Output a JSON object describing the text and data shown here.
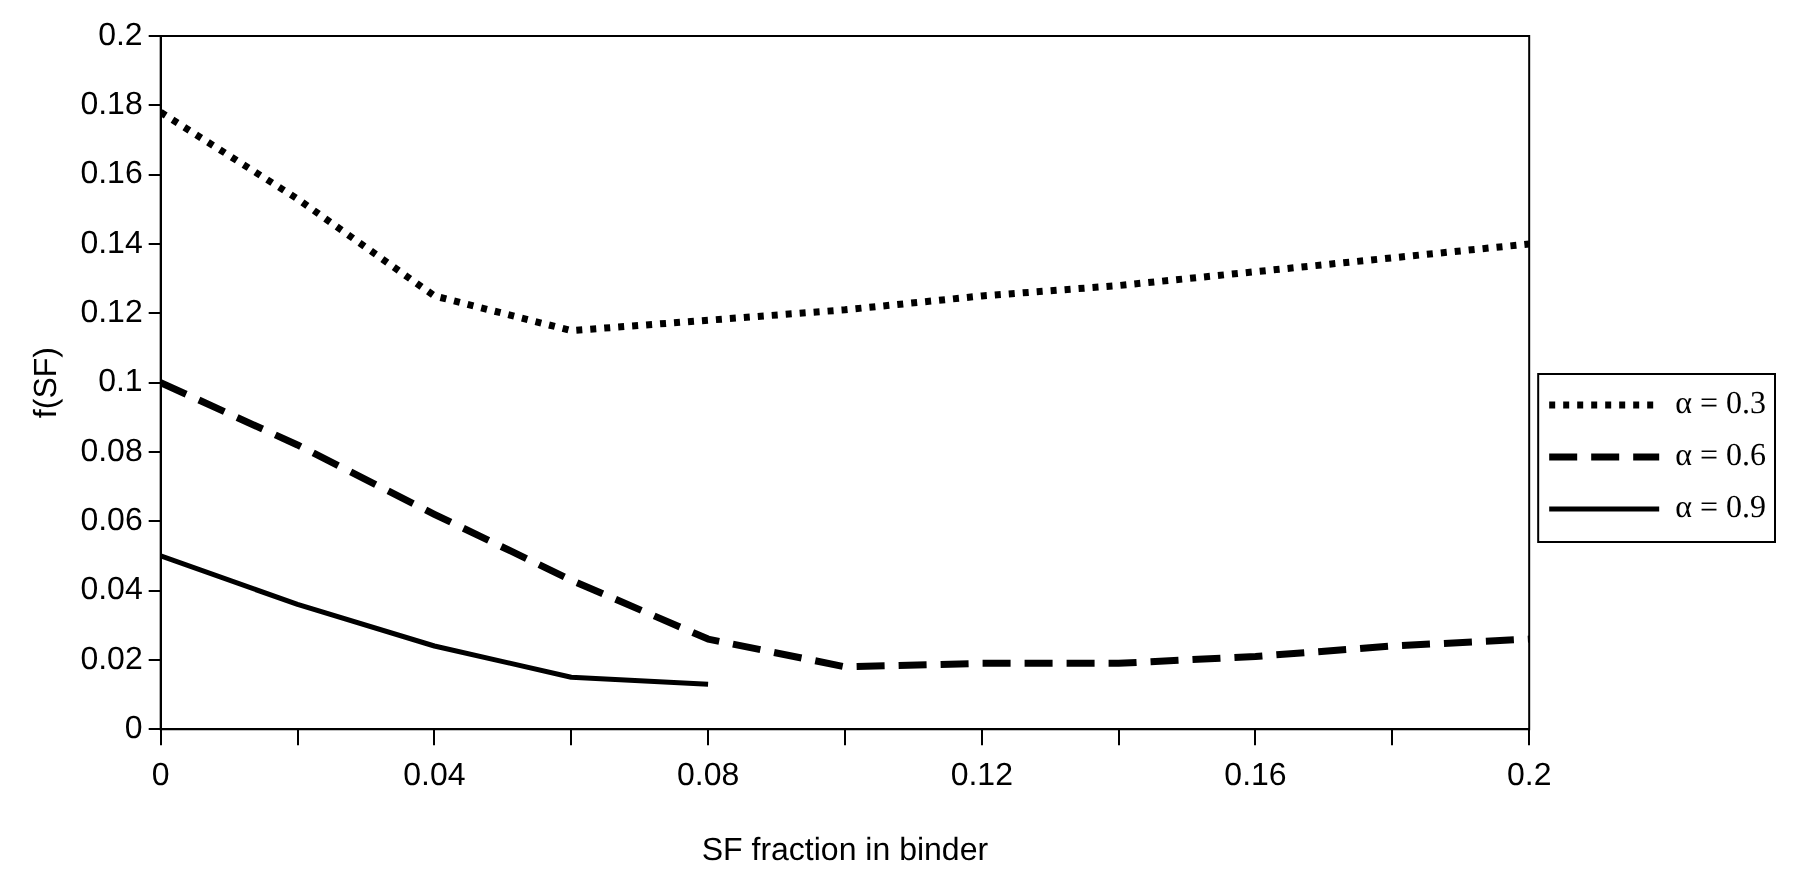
{
  "chart_data": {
    "type": "line",
    "xlabel": "SF fraction in binder",
    "ylabel": "f(SF)",
    "x": [
      0,
      0.02,
      0.04,
      0.06,
      0.08,
      0.1,
      0.12,
      0.14,
      0.16,
      0.18,
      0.2
    ],
    "xlim": [
      0,
      0.2
    ],
    "xticks": [
      0,
      {
        "value": 0.02,
        "label": null
      },
      0.04,
      {
        "value": 0.06,
        "label": null
      },
      0.08,
      {
        "value": 0.1,
        "label": null
      },
      0.12,
      {
        "value": 0.14,
        "label": null
      },
      0.16,
      {
        "value": 0.18,
        "label": null
      },
      0.2
    ],
    "ylim": [
      0,
      0.2
    ],
    "yticks": [
      0,
      0.02,
      0.04,
      0.06,
      0.08,
      0.1,
      0.12,
      0.14,
      0.16,
      0.18,
      0.2
    ],
    "series": [
      {
        "name": "α = 0.3",
        "color": "#000000",
        "line_style": "dotted",
        "values": [
          0.178,
          0.153,
          0.125,
          0.115,
          0.118,
          0.121,
          0.125,
          0.128,
          0.132,
          0.136,
          0.14
        ]
      },
      {
        "name": "α = 0.6",
        "color": "#000000",
        "line_style": "dashed",
        "values": [
          0.1,
          0.082,
          0.062,
          0.043,
          0.026,
          0.018,
          0.019,
          0.019,
          0.021,
          0.024,
          0.026
        ]
      },
      {
        "name": "α = 0.9",
        "color": "#000000",
        "line_style": "solid",
        "values": [
          0.05,
          0.036,
          0.024,
          0.015,
          0.013,
          null,
          null,
          null,
          null,
          null,
          null
        ]
      }
    ],
    "grid": false,
    "legend": "right",
    "marker": "none"
  }
}
